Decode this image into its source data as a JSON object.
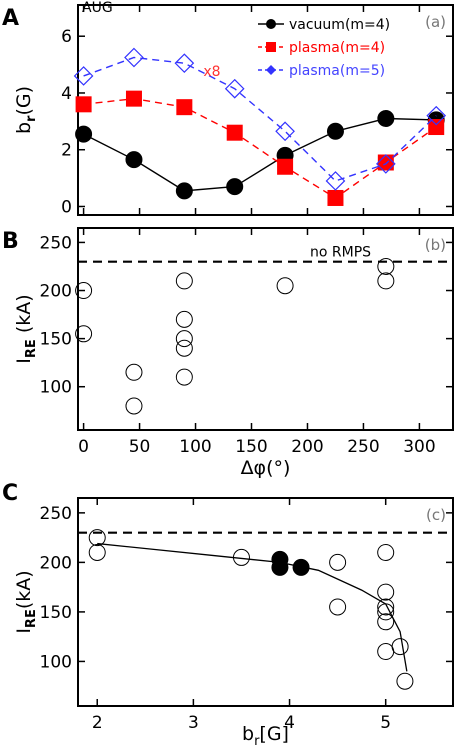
{
  "chart_data": [
    {
      "panel_letter": "A",
      "panel_tag": "(a)",
      "label": "AUG",
      "type": "line",
      "ylabel_main": "b",
      "ylabel_sub": "r",
      "ylabel_tail": "(G)",
      "xlim": [
        -5,
        330
      ],
      "ylim": [
        -0.3,
        7.1
      ],
      "x_ticks": [
        0,
        50,
        100,
        150,
        200,
        250,
        300
      ],
      "x_ticklabels": [],
      "y_ticks": [
        0,
        2,
        4,
        6
      ],
      "y_ticklabels": [
        "0",
        "2",
        "4",
        "6"
      ],
      "annotations": [
        {
          "text": "x8",
          "x": 107,
          "y": 4.6,
          "color": "#ff3333"
        }
      ],
      "legend_position": "top-right",
      "series": [
        {
          "name": "vacuum(m=4)",
          "color": "#000000",
          "marker": "circle",
          "dash": "solid",
          "legend_marker": "circle",
          "label_color": "#000000",
          "x": [
            0,
            45,
            90,
            135,
            180,
            225,
            270,
            315
          ],
          "y": [
            2.55,
            1.65,
            0.55,
            0.7,
            1.8,
            2.65,
            3.1,
            3.05
          ]
        },
        {
          "name": "plasma(m=4)",
          "color": "#ff0000",
          "marker": "square",
          "dash": "dashed",
          "legend_marker": "square",
          "label_color": "#ff0000",
          "x": [
            0,
            45,
            90,
            135,
            180,
            225,
            270,
            315
          ],
          "y": [
            3.6,
            3.8,
            3.5,
            2.6,
            1.4,
            0.3,
            1.55,
            2.8
          ]
        },
        {
          "name": "plasma(m=5)",
          "color": "#3333ff",
          "marker": "diamond-open",
          "dash": "dashed",
          "legend_marker": "diamond-filled",
          "label_color": "#4444ff",
          "x": [
            0,
            45,
            90,
            135,
            180,
            225,
            270,
            315
          ],
          "y": [
            4.6,
            5.25,
            5.05,
            4.15,
            2.65,
            0.9,
            1.5,
            3.2
          ]
        }
      ]
    },
    {
      "panel_letter": "B",
      "panel_tag": "(b)",
      "type": "scatter",
      "ylabel_main": "I",
      "ylabel_sub": "RE",
      "ylabel_tail": " (kA)",
      "xlabel": "Δφ(°)",
      "xlim": [
        -5,
        330
      ],
      "ylim": [
        55,
        265
      ],
      "x_ticks": [
        0,
        50,
        100,
        150,
        200,
        250,
        300
      ],
      "x_ticklabels": [
        "0",
        "50",
        "100",
        "150",
        "200",
        "250",
        "300"
      ],
      "y_ticks": [
        100,
        150,
        200,
        250
      ],
      "y_ticklabels": [
        "100",
        "150",
        "200",
        "250"
      ],
      "reference_line": {
        "y": 230,
        "label": "no RMPS"
      },
      "points": [
        {
          "x": 0,
          "y": 200
        },
        {
          "x": 0,
          "y": 155
        },
        {
          "x": 45,
          "y": 115
        },
        {
          "x": 45,
          "y": 80
        },
        {
          "x": 90,
          "y": 210
        },
        {
          "x": 90,
          "y": 170
        },
        {
          "x": 90,
          "y": 150
        },
        {
          "x": 90,
          "y": 140
        },
        {
          "x": 90,
          "y": 110
        },
        {
          "x": 180,
          "y": 205
        },
        {
          "x": 270,
          "y": 225
        },
        {
          "x": 270,
          "y": 210
        }
      ]
    },
    {
      "panel_letter": "C",
      "panel_tag": "(c)",
      "type": "scatter",
      "ylabel_main": "I",
      "ylabel_sub": "RE",
      "ylabel_tail": "(kA)",
      "xlabel_main": "b",
      "xlabel_sub": "r",
      "xlabel_tail": "[G]",
      "xlim": [
        1.8,
        5.7
      ],
      "ylim": [
        55,
        265
      ],
      "x_ticks": [
        2,
        3,
        4,
        5
      ],
      "x_ticklabels": [
        "2",
        "3",
        "4",
        "5"
      ],
      "y_ticks": [
        100,
        150,
        200,
        250
      ],
      "y_ticklabels": [
        "100",
        "150",
        "200",
        "250"
      ],
      "reference_line": {
        "y": 230
      },
      "trend_line": {
        "x": [
          2.0,
          2.6,
          3.2,
          3.9,
          4.3,
          4.75,
          5.0,
          5.15,
          5.22
        ],
        "y": [
          219,
          213,
          207,
          200,
          192,
          172,
          158,
          130,
          90
        ]
      },
      "points_open": [
        {
          "x": 2.0,
          "y": 225
        },
        {
          "x": 2.0,
          "y": 210
        },
        {
          "x": 3.5,
          "y": 205
        },
        {
          "x": 4.5,
          "y": 200
        },
        {
          "x": 4.5,
          "y": 155
        },
        {
          "x": 5.0,
          "y": 210
        },
        {
          "x": 5.0,
          "y": 170
        },
        {
          "x": 5.0,
          "y": 155
        },
        {
          "x": 5.0,
          "y": 150
        },
        {
          "x": 5.0,
          "y": 140
        },
        {
          "x": 5.0,
          "y": 110
        },
        {
          "x": 5.15,
          "y": 115
        },
        {
          "x": 5.2,
          "y": 80
        }
      ],
      "points_filled": [
        {
          "x": 3.9,
          "y": 203
        },
        {
          "x": 3.9,
          "y": 195
        },
        {
          "x": 4.12,
          "y": 195
        }
      ]
    }
  ]
}
